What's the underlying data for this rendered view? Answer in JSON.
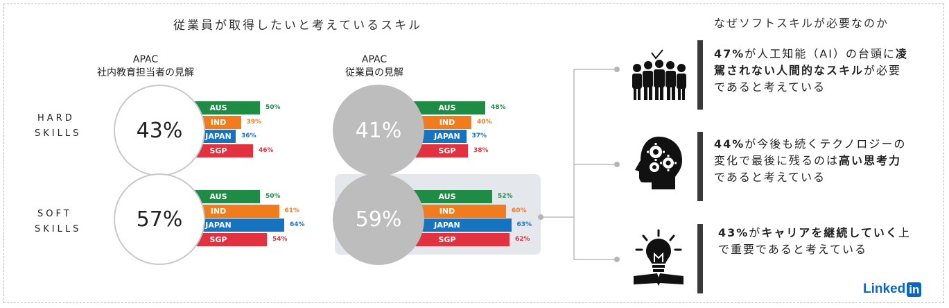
{
  "main_title": "従業員が取得したいと考えているスキル",
  "right_title": "なぜソフトスキルが必要なのか",
  "columns": [
    {
      "region": "APAC",
      "subtitle": "社内教育担当者の見解"
    },
    {
      "region": "APAC",
      "subtitle": "従業員の見解"
    }
  ],
  "row_labels": {
    "hard": [
      "HARD",
      "SKILLS"
    ],
    "soft": [
      "SOFT",
      "SKILLS"
    ]
  },
  "colors": {
    "AUS": "#1e8c45",
    "IND": "#f07c1e",
    "JAPAN": "#1673c0",
    "SGP": "#e2323f",
    "circle_filled": "#bdbdbd"
  },
  "chart_data": [
    {
      "type": "bar",
      "title": "社内教育担当者の見解",
      "row": "HARD SKILLS",
      "total": "43%",
      "categories": [
        "AUS",
        "IND",
        "JAPAN",
        "SGP"
      ],
      "values": [
        50,
        39,
        36,
        46
      ],
      "labels": [
        "50%",
        "39%",
        "36%",
        "46%"
      ]
    },
    {
      "type": "bar",
      "title": "従業員の見解",
      "row": "HARD SKILLS",
      "total": "41%",
      "categories": [
        "AUS",
        "IND",
        "JAPAN",
        "SGP"
      ],
      "values": [
        48,
        40,
        37,
        38
      ],
      "labels": [
        "48%",
        "40%",
        "37%",
        "38%"
      ]
    },
    {
      "type": "bar",
      "title": "社内教育担当者の見解",
      "row": "SOFT SKILLS",
      "total": "57%",
      "categories": [
        "AUS",
        "IND",
        "JAPAN",
        "SGP"
      ],
      "values": [
        50,
        61,
        64,
        54
      ],
      "labels": [
        "50%",
        "61%",
        "64%",
        "54%"
      ]
    },
    {
      "type": "bar",
      "title": "従業員の見解",
      "row": "SOFT SKILLS",
      "total": "59%",
      "categories": [
        "AUS",
        "IND",
        "JAPAN",
        "SGP"
      ],
      "values": [
        52,
        60,
        63,
        62
      ],
      "labels": [
        "52%",
        "60%",
        "63%",
        "62%"
      ]
    }
  ],
  "reasons": [
    {
      "icon": "team-icon",
      "parts": [
        {
          "t": "47%",
          "b": true
        },
        {
          "t": "が人工知能（AI）の台頭に",
          "b": false
        },
        {
          "t": "凌駕されない人間的なスキル",
          "b": true
        },
        {
          "t": "が必要であると考えている",
          "b": false
        }
      ]
    },
    {
      "icon": "head-gears-icon",
      "parts": [
        {
          "t": "44%",
          "b": true
        },
        {
          "t": "が今後も続くテクノロジーの変化で最後に残るのは",
          "b": false
        },
        {
          "t": "高い思考力",
          "b": true
        },
        {
          "t": "であると考えている",
          "b": false
        }
      ]
    },
    {
      "icon": "lightbulb-book-icon",
      "parts": [
        {
          "t": "43%",
          "b": true
        },
        {
          "t": "が",
          "b": false
        },
        {
          "t": "キャリアを継続していく",
          "b": true
        },
        {
          "t": "上で重要であると考えている",
          "b": false
        }
      ]
    }
  ],
  "logo": {
    "text": "Linked",
    "box": "in"
  }
}
